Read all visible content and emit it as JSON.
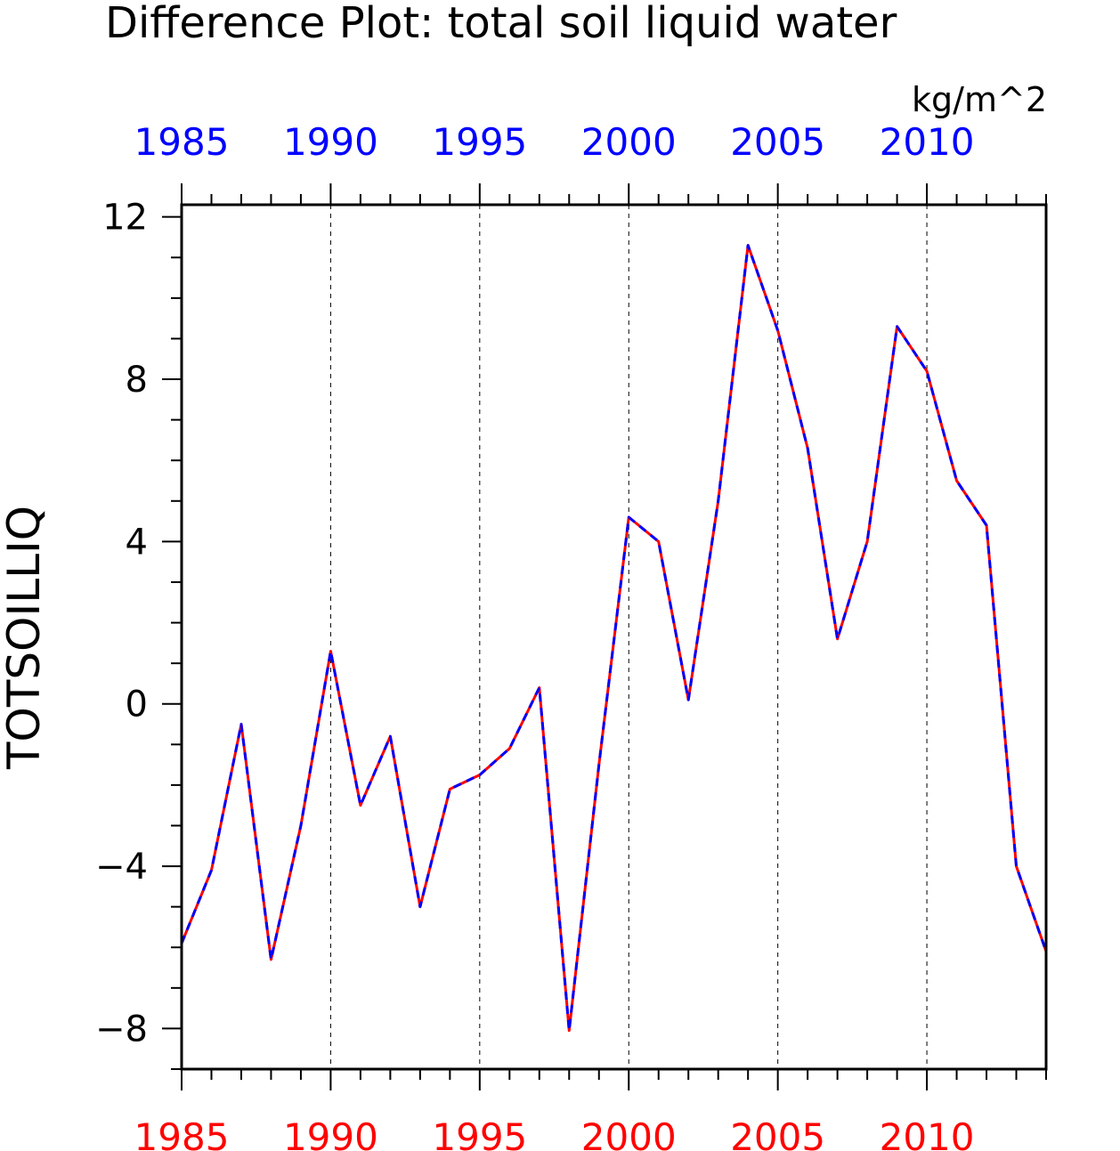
{
  "chart_data": {
    "type": "line",
    "title": "Difference Plot: total soil liquid water",
    "units": "kg/m^2",
    "ylabel": "TOTSOILLIQ",
    "xlabel": "",
    "xlim": [
      1985,
      2014
    ],
    "ylim": [
      -9,
      12.3
    ],
    "x_ticks": [
      1985,
      1990,
      1995,
      2000,
      2005,
      2010
    ],
    "y_ticks": [
      -8,
      -4,
      0,
      4,
      8,
      12
    ],
    "y_tick_labels": [
      "−8",
      "−4",
      "0",
      "4",
      "8",
      "12"
    ],
    "grid": "vertical dashed at major x ticks",
    "colors": {
      "bottom_axis_labels": "#ff0000",
      "top_axis_labels": "#0000ff",
      "series_a": "#ff0000",
      "series_b": "#0000ff",
      "text": "#000000"
    },
    "x": [
      1985,
      1986,
      1987,
      1988,
      1989,
      1990,
      1991,
      1992,
      1993,
      1994,
      1995,
      1996,
      1997,
      1998,
      1999,
      2000,
      2001,
      2002,
      2003,
      2004,
      2005,
      2006,
      2007,
      2008,
      2009,
      2010,
      2011,
      2012,
      2013,
      2014
    ],
    "series": [
      {
        "values": [
          -5.9,
          -4.1,
          -0.5,
          -6.3,
          -3.0,
          1.3,
          -2.5,
          -0.8,
          -5.0,
          -2.1,
          -1.75,
          -1.1,
          0.4,
          -8.05,
          -1.5,
          4.6,
          4.0,
          0.1,
          5.0,
          11.3,
          9.2,
          6.3,
          1.6,
          4.0,
          9.3,
          8.2,
          5.5,
          4.4,
          -4.0,
          -6.1
        ],
        "style": "solid",
        "color": "#ff0000"
      },
      {
        "values": [
          -5.9,
          -4.1,
          -0.5,
          -6.3,
          -3.0,
          1.3,
          -2.5,
          -0.8,
          -5.0,
          -2.1,
          -1.75,
          -1.1,
          0.4,
          -8.05,
          -1.5,
          4.6,
          4.0,
          0.1,
          5.0,
          11.3,
          9.2,
          6.3,
          1.6,
          4.0,
          9.3,
          8.2,
          5.5,
          4.4,
          -4.0,
          -6.1
        ],
        "style": "dashed",
        "color": "#0000ff"
      }
    ]
  }
}
